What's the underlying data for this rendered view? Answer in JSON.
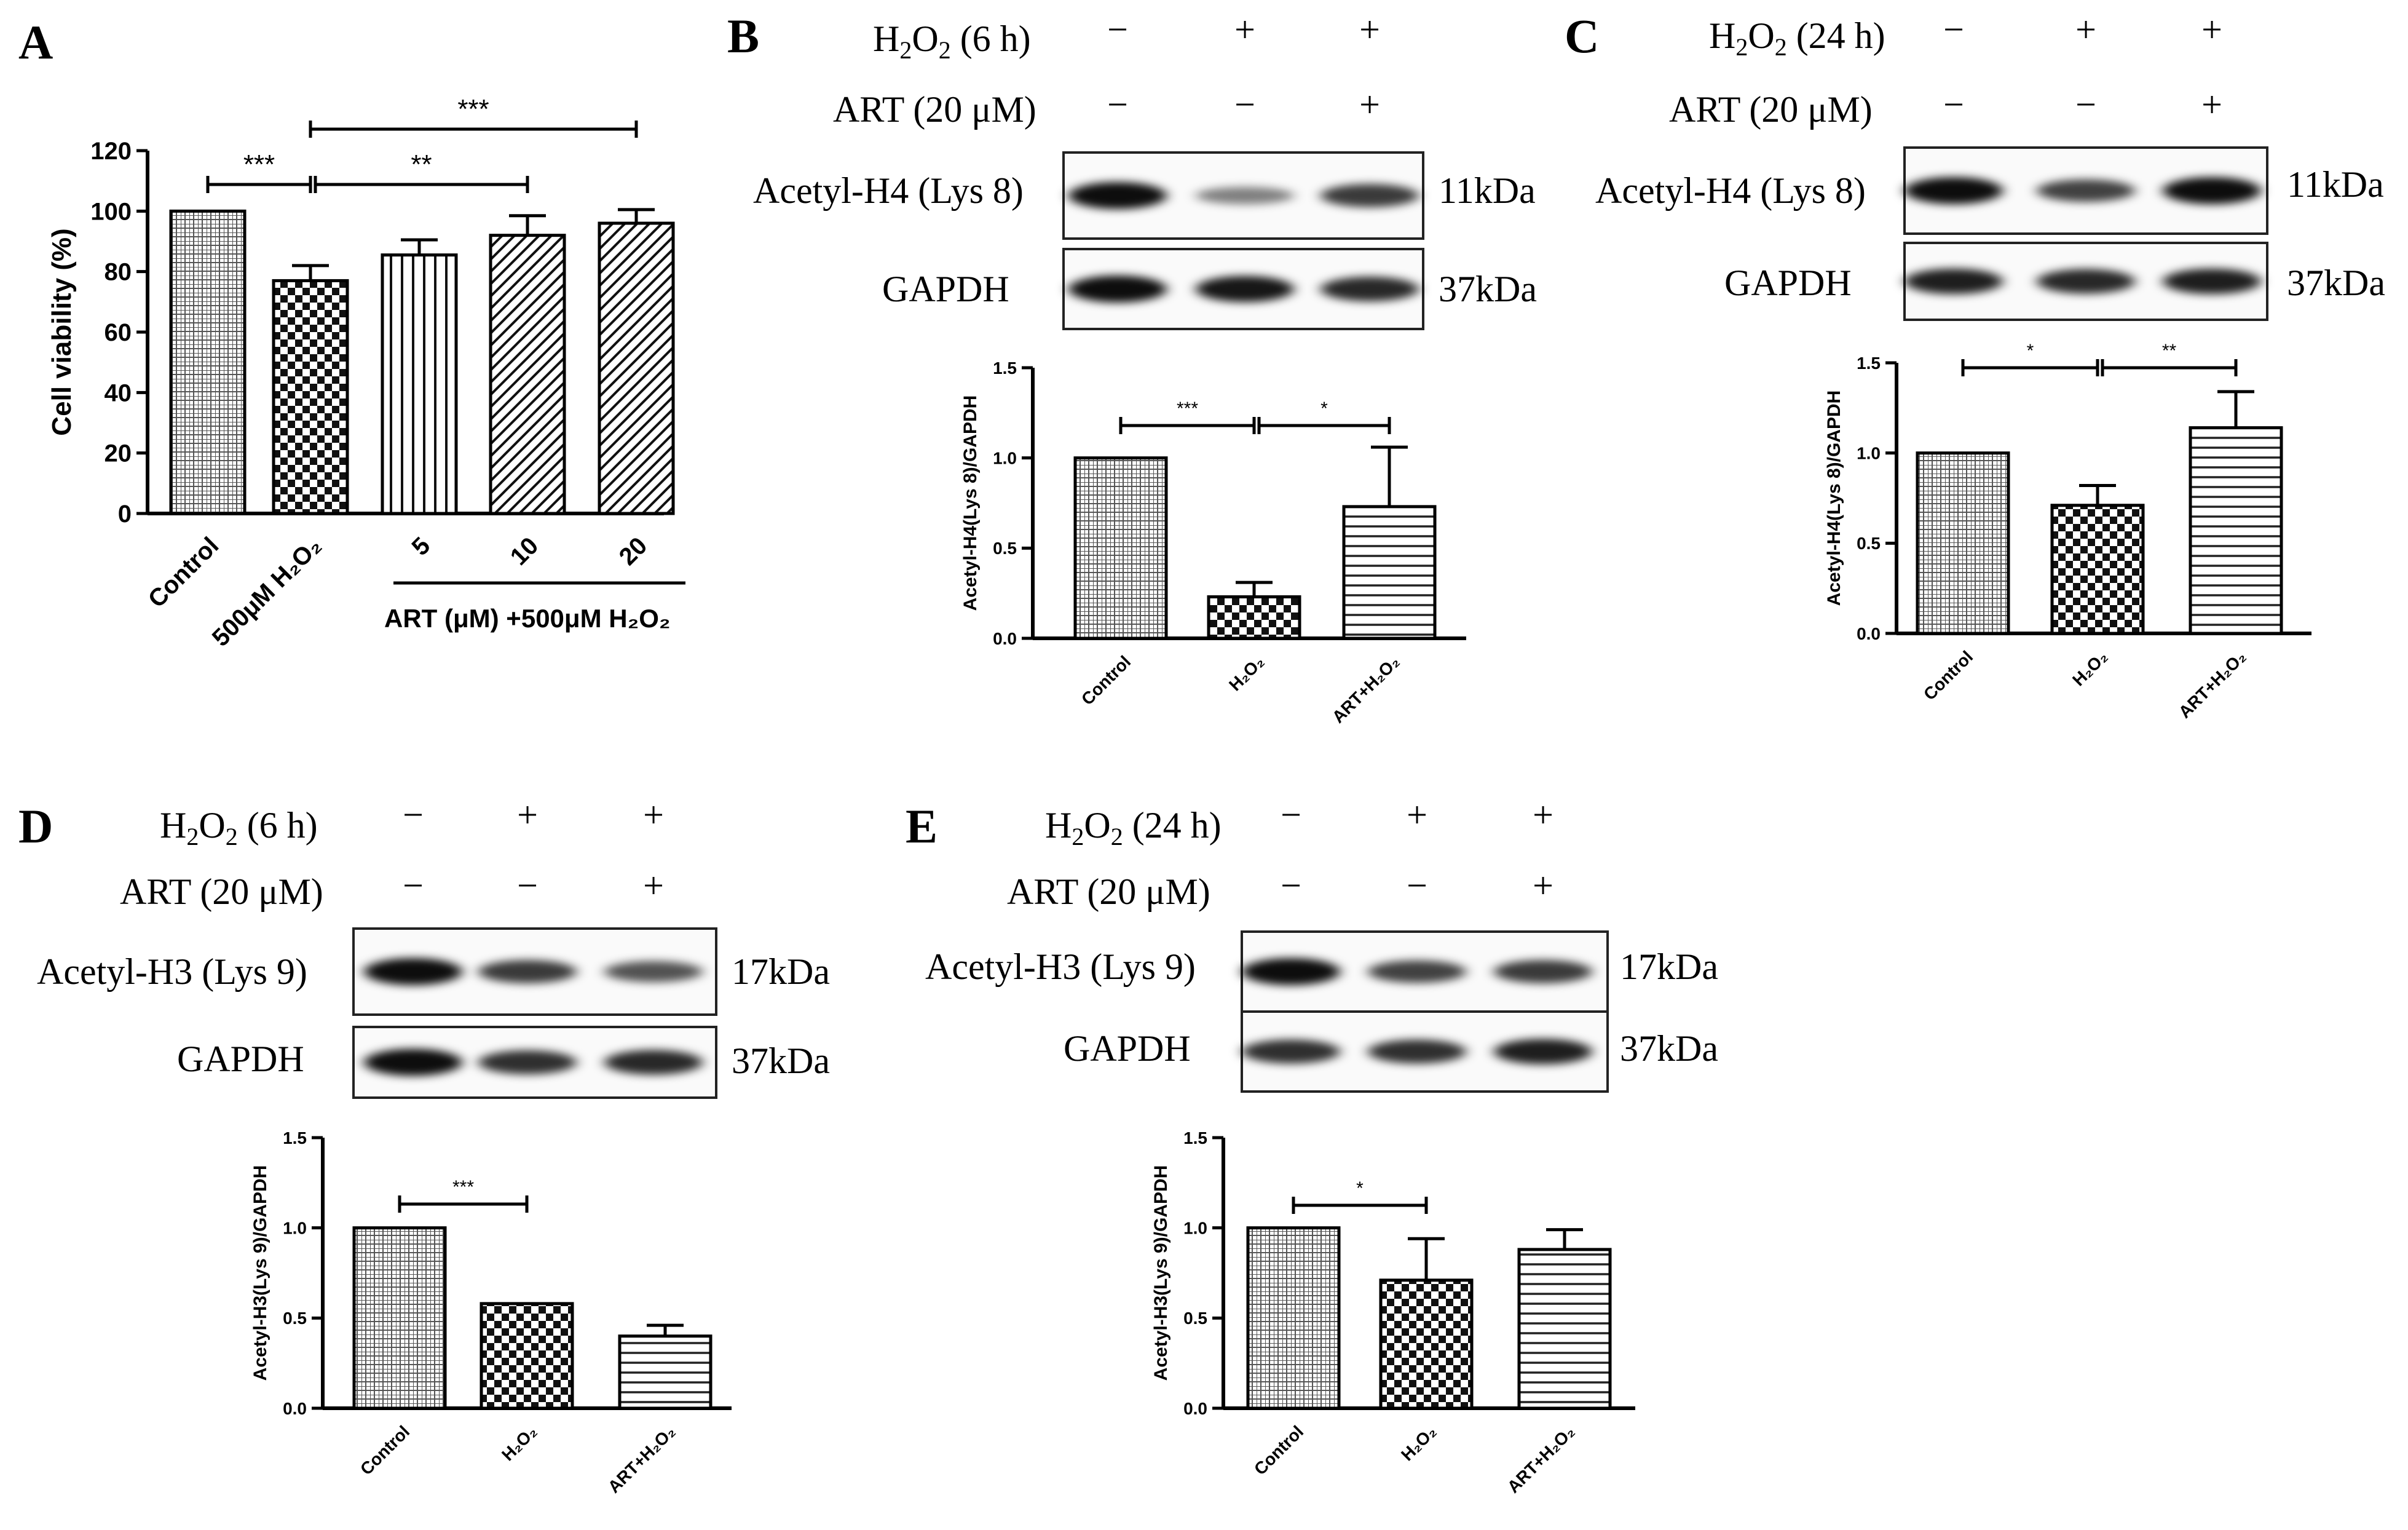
{
  "labels": {
    "h2o2_6h_pre": "H",
    "h2o2_6h_sub": "2",
    "h2o2_6h_mid": "O",
    "h2o2_6h_sub2": "2",
    "h2o2_6h_post": " (6 h)",
    "h2o2_24h_post": " (24 h)",
    "art": "ART (20 μM)",
    "minus": "−",
    "plus": "+",
    "ac_h4": "Acetyl-H4 (Lys 8)",
    "ac_h3": "Acetyl-H3 (Lys 9)",
    "gapdh": "GAPDH",
    "kda11": "11kDa",
    "kda17": "17kDa",
    "kda37": "37kDa"
  },
  "treatment_rows": {
    "h2o2": [
      "−",
      "+",
      "+"
    ],
    "art": [
      "−",
      "−",
      "+"
    ]
  },
  "chart_data": [
    {
      "panel": "A",
      "type": "bar",
      "ylabel": "Cell viability (%)",
      "ylim": [
        0,
        120
      ],
      "yticks": [
        "0",
        "20",
        "40",
        "60",
        "80",
        "100",
        "120"
      ],
      "categories": [
        "Control",
        "500μM H₂O₂",
        "5",
        "10",
        "20"
      ],
      "group_label": "ART (μM) +500μM H₂O₂",
      "values": [
        100,
        77,
        85.5,
        92,
        96
      ],
      "errors": [
        0,
        5,
        5,
        6.5,
        4.5
      ],
      "patterns": [
        "grid",
        "checker",
        "vertical",
        "diag",
        "diag"
      ],
      "significance": [
        {
          "from": 0,
          "to": 1,
          "label": "***"
        },
        {
          "from": 1,
          "to": 3,
          "label": "**"
        },
        {
          "from": 1,
          "to": 4,
          "label": "***"
        }
      ]
    },
    {
      "panel": "B",
      "type": "bar",
      "ylabel": "Acetyl-H4(Lys 8)/GAPDH",
      "ylim": [
        0,
        1.5
      ],
      "yticks": [
        "0.0",
        "0.5",
        "1.0",
        "1.5"
      ],
      "categories": [
        "Control",
        "H₂O₂",
        "ART+H₂O₂"
      ],
      "values": [
        1.0,
        0.23,
        0.73
      ],
      "errors": [
        0,
        0.08,
        0.33
      ],
      "patterns": [
        "grid",
        "checker",
        "horizontal"
      ],
      "significance": [
        {
          "from": 0,
          "to": 1,
          "label": "***"
        },
        {
          "from": 1,
          "to": 2,
          "label": "*"
        }
      ]
    },
    {
      "panel": "C",
      "type": "bar",
      "ylabel": "Acetyl-H4(Lys 8)/GAPDH",
      "ylim": [
        0,
        1.5
      ],
      "yticks": [
        "0.0",
        "0.5",
        "1.0",
        "1.5"
      ],
      "categories": [
        "Control",
        "H₂O₂",
        "ART+H₂O₂"
      ],
      "values": [
        1.0,
        0.71,
        1.14
      ],
      "errors": [
        0,
        0.11,
        0.2
      ],
      "patterns": [
        "grid",
        "checker",
        "horizontal"
      ],
      "significance": [
        {
          "from": 0,
          "to": 1,
          "label": "*"
        },
        {
          "from": 1,
          "to": 2,
          "label": "**"
        }
      ]
    },
    {
      "panel": "D",
      "type": "bar",
      "ylabel": "Acetyl-H3(Lys 9)/GAPDH",
      "ylim": [
        0,
        1.5
      ],
      "yticks": [
        "0.0",
        "0.5",
        "1.0",
        "1.5"
      ],
      "categories": [
        "Control",
        "H₂O₂",
        "ART+H₂O₂"
      ],
      "values": [
        1.0,
        0.58,
        0.4
      ],
      "errors": [
        0,
        0,
        0.06
      ],
      "patterns": [
        "grid",
        "checker",
        "horizontal"
      ],
      "significance": [
        {
          "from": 0,
          "to": 1,
          "label": "***"
        }
      ]
    },
    {
      "panel": "E",
      "type": "bar",
      "ylabel": "Acetyl-H3(Lys 9)/GAPDH",
      "ylim": [
        0,
        1.5
      ],
      "yticks": [
        "0.0",
        "0.5",
        "1.0",
        "1.5"
      ],
      "categories": [
        "Control",
        "H₂O₂",
        "ART+H₂O₂"
      ],
      "values": [
        1.0,
        0.71,
        0.88
      ],
      "errors": [
        0,
        0.23,
        0.11
      ],
      "patterns": [
        "grid",
        "checker",
        "horizontal"
      ],
      "significance": [
        {
          "from": 0,
          "to": 1,
          "label": "*"
        }
      ]
    }
  ],
  "blots": [
    {
      "panel": "B",
      "target": [
        1.0,
        0.35,
        0.75
      ],
      "gapdh": [
        1.0,
        0.95,
        0.85
      ]
    },
    {
      "panel": "C",
      "target": [
        1.0,
        0.7,
        1.0
      ],
      "gapdh": [
        0.9,
        0.85,
        0.9
      ]
    },
    {
      "panel": "D",
      "target": [
        1.0,
        0.75,
        0.6
      ],
      "gapdh": [
        1.0,
        0.8,
        0.85
      ]
    },
    {
      "panel": "E",
      "target": [
        1.0,
        0.7,
        0.75
      ],
      "gapdh": [
        0.8,
        0.8,
        0.9
      ]
    }
  ]
}
